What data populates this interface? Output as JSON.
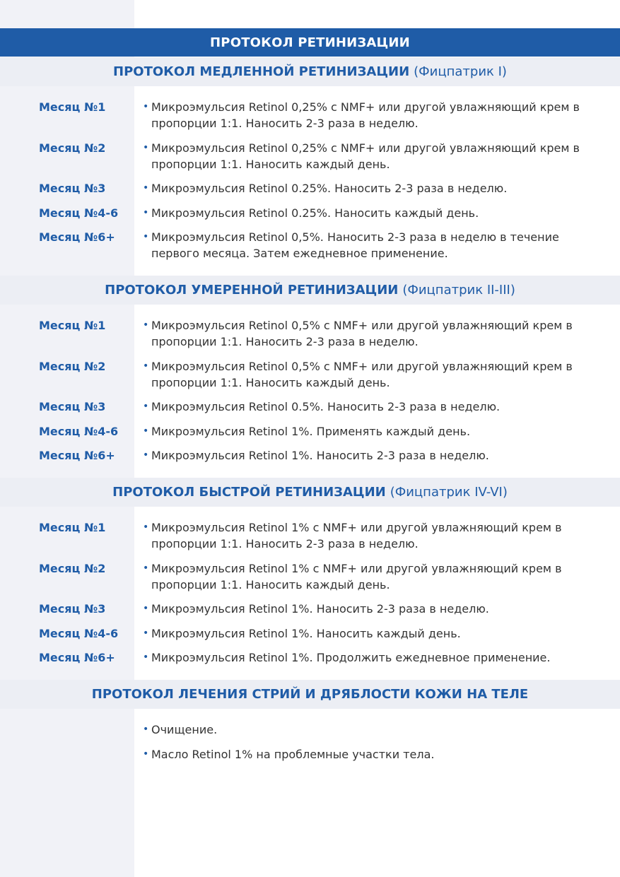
{
  "title": "ПРОТОКОЛ РЕТИНИЗАЦИИ",
  "sections": [
    {
      "title": "ПРОТОКОЛ МЕДЛЕННОЙ РЕТИНИЗАЦИИ",
      "subtitle": "(Фицпатрик I)",
      "rows": [
        {
          "label": "Месяц №1",
          "text": "Микроэмульсия Retinol 0,25% с NMF+ или другой увлажняющий крем в пропорции 1:1. Наносить 2-3 раза в неделю."
        },
        {
          "label": "Месяц №2",
          "text": "Микроэмульсия Retinol 0,25% с NMF+ или другой увлажняющий крем в пропорции 1:1. Наносить каждый день."
        },
        {
          "label": "Месяц №3",
          "text": "Микроэмульсия Retinol 0.25%. Наносить 2-3 раза в неделю."
        },
        {
          "label": "Месяц №4-6",
          "text": "Микроэмульсия Retinol 0.25%. Наносить каждый день."
        },
        {
          "label": "Месяц №6+",
          "text": "Микроэмульсия Retinol 0,5%. Наносить 2-3 раза в неделю в течение первого месяца. Затем ежедневное применение."
        }
      ]
    },
    {
      "title": "ПРОТОКОЛ УМЕРЕННОЙ РЕТИНИЗАЦИИ",
      "subtitle": "(Фицпатрик II-III)",
      "rows": [
        {
          "label": "Месяц №1",
          "text": "Микроэмульсия Retinol 0,5% с NMF+ или другой увлажняющий крем в пропорции 1:1. Наносить 2-3 раза в неделю."
        },
        {
          "label": "Месяц №2",
          "text": "Микроэмульсия Retinol 0,5% с NMF+ или другой увлажняющий крем в пропорции 1:1. Наносить каждый день."
        },
        {
          "label": "Месяц №3",
          "text": "Микроэмульсия Retinol 0.5%. Наносить 2-3 раза в неделю."
        },
        {
          "label": "Месяц №4-6",
          "text": "Микроэмульсия Retinol 1%. Применять каждый день."
        },
        {
          "label": "Месяц №6+",
          "text": "Микроэмульсия Retinol 1%. Наносить 2-3 раза в неделю."
        }
      ]
    },
    {
      "title": "ПРОТОКОЛ БЫСТРОЙ РЕТИНИЗАЦИИ",
      "subtitle": "(Фицпатрик IV-VI)",
      "rows": [
        {
          "label": "Месяц №1",
          "text": "Микроэмульсия Retinol 1% с NMF+ или другой увлажняющий крем в пропорции 1:1. Наносить 2-3 раза в неделю."
        },
        {
          "label": "Месяц №2",
          "text": "Микроэмульсия Retinol 1% с NMF+ или другой увлажняющий крем в пропорции 1:1. Наносить каждый день."
        },
        {
          "label": "Месяц №3",
          "text": "Микроэмульсия Retinol 1%. Наносить 2-3 раза в неделю."
        },
        {
          "label": "Месяц №4-6",
          "text": "Микроэмульсия Retinol 1%. Наносить каждый день."
        },
        {
          "label": "Месяц №6+",
          "text": "Микроэмульсия Retinol 1%. Продолжить ежедневное применение."
        }
      ]
    },
    {
      "title": "ПРОТОКОЛ ЛЕЧЕНИЯ СТРИЙ И ДРЯБЛОСТИ КОЖИ НА ТЕЛЕ",
      "subtitle": "",
      "rows": [
        {
          "label": "",
          "text": "Очищение."
        },
        {
          "label": "",
          "text": "Масло Retinol 1% на проблемные участки тела."
        }
      ]
    }
  ],
  "colors": {
    "accent": "#1f5ca7",
    "band": "#eceef4",
    "sidebar": "#f1f2f7",
    "text": "#333333"
  }
}
